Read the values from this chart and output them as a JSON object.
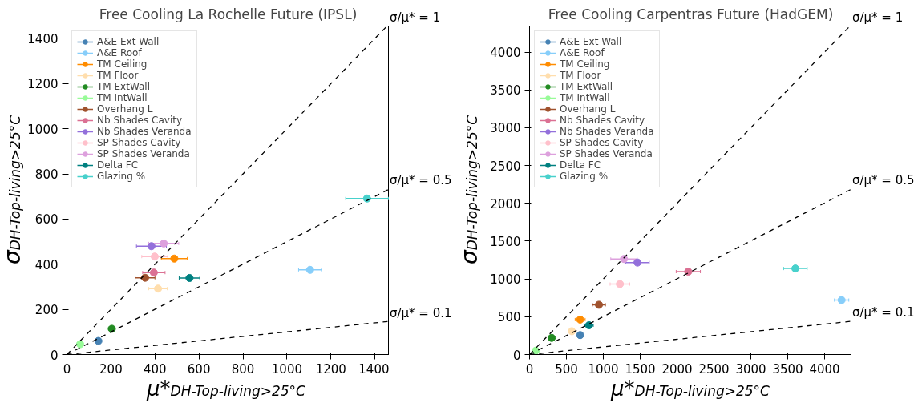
{
  "chart_data": [
    {
      "type": "scatter",
      "title": "Free Cooling La Rochelle Future (IPSL)",
      "xlabel": "μ*$_{DH-Top-living>25°C}$",
      "ylabel": "σ$_{DH-Top-living>25°C}$",
      "xlim": [
        0,
        1465
      ],
      "ylim": [
        0,
        1455
      ],
      "xticks": [
        0,
        200,
        400,
        600,
        800,
        1000,
        1200,
        1400
      ],
      "yticks": [
        0,
        200,
        400,
        600,
        800,
        1000,
        1200,
        1400
      ],
      "grid": false,
      "legend": "top left",
      "marker": "circle",
      "series": [
        {
          "name": "A&E Ext Wall",
          "color": "#4682b4",
          "x": [
            143
          ],
          "values": [
            60
          ],
          "xerrors": [
            10
          ]
        },
        {
          "name": "A&E Roof",
          "color": "#87cefa",
          "x": [
            1105
          ],
          "values": [
            375
          ],
          "xerrors": [
            52
          ]
        },
        {
          "name": "TM Ceiling",
          "color": "#ff8c00",
          "x": [
            488
          ],
          "values": [
            425
          ],
          "xerrors": [
            59
          ]
        },
        {
          "name": "TM Floor",
          "color": "#ffdead",
          "x": [
            414
          ],
          "values": [
            292
          ],
          "xerrors": [
            42
          ]
        },
        {
          "name": "TM ExtWall",
          "color": "#228b22",
          "x": [
            204
          ],
          "values": [
            114
          ],
          "xerrors": [
            15
          ]
        },
        {
          "name": "TM IntWall",
          "color": "#98fb98",
          "x": [
            60
          ],
          "values": [
            46
          ],
          "xerrors": [
            8
          ]
        },
        {
          "name": "Overhang L",
          "color": "#a0522d",
          "x": [
            355
          ],
          "values": [
            340
          ],
          "xerrors": [
            45
          ]
        },
        {
          "name": "Nb Shades Cavity",
          "color": "#db7093",
          "x": [
            395
          ],
          "values": [
            363
          ],
          "xerrors": [
            51
          ]
        },
        {
          "name": "Nb Shades Veranda",
          "color": "#9370db",
          "x": [
            384
          ],
          "values": [
            480
          ],
          "xerrors": [
            68
          ]
        },
        {
          "name": "SP Shades Cavity",
          "color": "#ffc0cb",
          "x": [
            399
          ],
          "values": [
            434
          ],
          "xerrors": [
            59
          ]
        },
        {
          "name": "SP Shades Veranda",
          "color": "#dda0dd",
          "x": [
            440
          ],
          "values": [
            492
          ],
          "xerrors": [
            68
          ]
        },
        {
          "name": "Delta FC",
          "color": "#008080",
          "x": [
            557
          ],
          "values": [
            339
          ],
          "xerrors": [
            47
          ]
        },
        {
          "name": "Glazing %",
          "color": "#48d1cc",
          "x": [
            1364
          ],
          "values": [
            691
          ],
          "xerrors": [
            97
          ]
        },
        {
          "name": "σ/μ* = 1",
          "type": "line",
          "marker": "none",
          "line_style": "dashed",
          "color": "#000000",
          "x": [
            0,
            1455
          ],
          "values": [
            0,
            1455
          ]
        },
        {
          "name": "σ/μ* = 0.5",
          "type": "line",
          "marker": "none",
          "line_style": "dashed",
          "color": "#000000",
          "x": [
            0,
            1465
          ],
          "values": [
            0,
            733
          ]
        },
        {
          "name": "σ/μ* = 0.1",
          "type": "line",
          "marker": "none",
          "line_style": "dashed",
          "color": "#000000",
          "x": [
            0,
            1465
          ],
          "values": [
            0,
            147
          ]
        }
      ]
    },
    {
      "type": "scatter",
      "title": "Free Cooling Carpentras Future (HadGEM)",
      "xlabel": "μ*$_{DH-Top-living>25°C}$",
      "ylabel": "σ$_{DH-Top-living>25°C}$",
      "xlim": [
        0,
        4370
      ],
      "ylim": [
        0,
        4345
      ],
      "xticks": [
        0,
        500,
        1000,
        1500,
        2000,
        2500,
        3000,
        3500,
        4000
      ],
      "yticks": [
        0,
        500,
        1000,
        1500,
        2000,
        2500,
        3000,
        3500,
        4000
      ],
      "grid": false,
      "legend": "top left",
      "marker": "circle",
      "series": [
        {
          "name": "A&E Ext Wall",
          "color": "#4682b4",
          "x": [
            686
          ],
          "values": [
            257
          ],
          "xerrors": [
            30
          ]
        },
        {
          "name": "A&E Roof",
          "color": "#87cefa",
          "x": [
            4231
          ],
          "values": [
            720
          ],
          "xerrors": [
            98
          ]
        },
        {
          "name": "TM Ceiling",
          "color": "#ff8c00",
          "x": [
            686
          ],
          "values": [
            462
          ],
          "xerrors": [
            68
          ]
        },
        {
          "name": "TM Floor",
          "color": "#ffdead",
          "x": [
            573
          ],
          "values": [
            308
          ],
          "xerrors": [
            40
          ]
        },
        {
          "name": "TM ExtWall",
          "color": "#228b22",
          "x": [
            300
          ],
          "values": [
            220
          ],
          "xerrors": [
            25
          ]
        },
        {
          "name": "TM IntWall",
          "color": "#98fb98",
          "x": [
            84
          ],
          "values": [
            51
          ],
          "xerrors": [
            20
          ]
        },
        {
          "name": "Overhang L",
          "color": "#a0522d",
          "x": [
            941
          ],
          "values": [
            658
          ],
          "xerrors": [
            88
          ]
        },
        {
          "name": "Nb Shades Cavity",
          "color": "#db7093",
          "x": [
            2152
          ],
          "values": [
            1097
          ],
          "xerrors": [
            164
          ]
        },
        {
          "name": "Nb Shades Veranda",
          "color": "#9370db",
          "x": [
            1463
          ],
          "values": [
            1217
          ],
          "xerrors": [
            160
          ]
        },
        {
          "name": "SP Shades Cavity",
          "color": "#ffc0cb",
          "x": [
            1225
          ],
          "values": [
            932
          ],
          "xerrors": [
            133
          ]
        },
        {
          "name": "SP Shades Veranda",
          "color": "#dda0dd",
          "x": [
            1280
          ],
          "values": [
            1264
          ],
          "xerrors": [
            179
          ]
        },
        {
          "name": "Delta FC",
          "color": "#008080",
          "x": [
            806
          ],
          "values": [
            387
          ],
          "xerrors": [
            58
          ]
        },
        {
          "name": "Glazing %",
          "color": "#48d1cc",
          "x": [
            3604
          ],
          "values": [
            1138
          ],
          "xerrors": [
            160
          ]
        },
        {
          "name": "σ/μ* = 1",
          "type": "line",
          "marker": "none",
          "line_style": "dashed",
          "color": "#000000",
          "x": [
            0,
            4345
          ],
          "values": [
            0,
            4345
          ]
        },
        {
          "name": "σ/μ* = 0.5",
          "type": "line",
          "marker": "none",
          "line_style": "dashed",
          "color": "#000000",
          "x": [
            0,
            4370
          ],
          "values": [
            0,
            2190
          ]
        },
        {
          "name": "σ/μ* = 0.1",
          "type": "line",
          "marker": "none",
          "line_style": "dashed",
          "color": "#000000",
          "x": [
            0,
            4370
          ],
          "values": [
            0,
            440
          ]
        }
      ]
    }
  ]
}
